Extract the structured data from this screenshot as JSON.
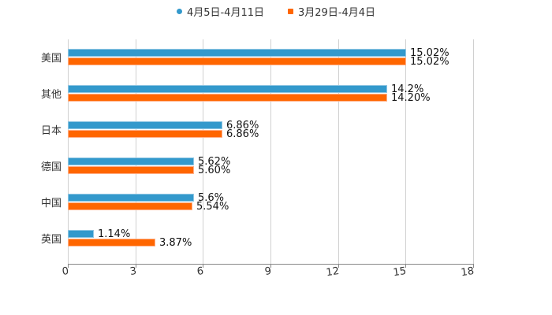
{
  "legend": {
    "items": [
      {
        "label": "4月5日-4月11日",
        "color": "#3399cc",
        "marker": "circle"
      },
      {
        "label": "3月29日-4月4日",
        "color": "#ff6600",
        "marker": "square"
      }
    ]
  },
  "axis": {
    "ticks": [
      "0",
      "3",
      "6",
      "9",
      "12",
      "15",
      "18"
    ]
  },
  "chart_data": {
    "type": "bar",
    "orientation": "horizontal",
    "title": "",
    "xlabel": "",
    "ylabel": "",
    "xlim": [
      0,
      18
    ],
    "grid": true,
    "legend_position": "top",
    "categories": [
      "美国",
      "其他",
      "日本",
      "德国",
      "中国",
      "英国"
    ],
    "series": [
      {
        "name": "4月5日-4月11日",
        "color": "#3399cc",
        "values": [
          15.02,
          14.2,
          6.86,
          5.62,
          5.6,
          1.14
        ],
        "labels": [
          "15.02%",
          "14.2%",
          "6.86%",
          "5.62%",
          "5.6%",
          "1.14%"
        ]
      },
      {
        "name": "3月29日-4月4日",
        "color": "#ff6600",
        "values": [
          15.02,
          14.2,
          6.86,
          5.6,
          5.54,
          3.87
        ],
        "labels": [
          "15.02%",
          "14.20%",
          "6.86%",
          "5.60%",
          "5.54%",
          "3.87%"
        ]
      }
    ]
  }
}
